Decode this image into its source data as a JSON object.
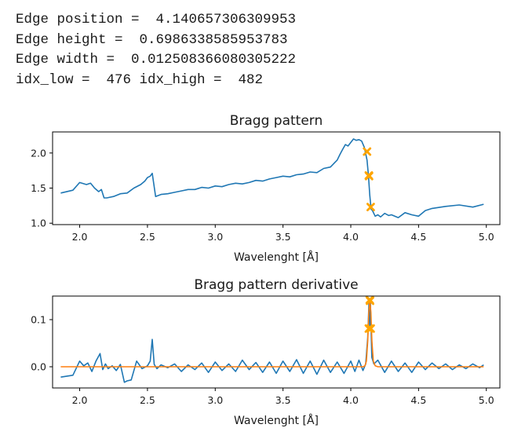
{
  "output": {
    "lines": [
      "Edge position =  4.140657306309953",
      "Edge height =  0.6986338585953783",
      "Edge width =  0.012508366080305222",
      "idx_low =  476 idx_high =  482"
    ]
  },
  "colors": {
    "series": "#1f77b4",
    "fit": "#ff7f0e",
    "markers": "#ffa500",
    "axes": "#000000"
  },
  "chart_data": [
    {
      "type": "line",
      "title": "Bragg pattern",
      "xlabel": "Wavelenght [Å]",
      "ylabel": "",
      "xlim": [
        1.8,
        5.1
      ],
      "ylim": [
        0.98,
        2.3
      ],
      "xticks": [
        2.0,
        2.5,
        3.0,
        3.5,
        4.0,
        4.5,
        5.0
      ],
      "xtick_labels": [
        "2.0",
        "2.5",
        "3.0",
        "3.5",
        "4.0",
        "4.5",
        "5.0"
      ],
      "yticks": [
        1.0,
        1.5,
        2.0
      ],
      "ytick_labels": [
        "1.0",
        "1.5",
        "2.0"
      ],
      "grid": false,
      "series": [
        {
          "kind": "line",
          "x": [
            1.86,
            1.95,
            2.0,
            2.05,
            2.08,
            2.11,
            2.14,
            2.16,
            2.18,
            2.2,
            2.25,
            2.3,
            2.35,
            2.4,
            2.45,
            2.48,
            2.5,
            2.52,
            2.535,
            2.56,
            2.6,
            2.65,
            2.7,
            2.75,
            2.8,
            2.85,
            2.9,
            2.95,
            3.0,
            3.05,
            3.1,
            3.15,
            3.2,
            3.25,
            3.3,
            3.35,
            3.4,
            3.45,
            3.5,
            3.55,
            3.6,
            3.65,
            3.7,
            3.75,
            3.8,
            3.85,
            3.88,
            3.9,
            3.92,
            3.94,
            3.96,
            3.98,
            4.0,
            4.02,
            4.04,
            4.06,
            4.08,
            4.1,
            4.12,
            4.13,
            4.14,
            4.15,
            4.16,
            4.18,
            4.2,
            4.22,
            4.25,
            4.28,
            4.3,
            4.35,
            4.4,
            4.45,
            4.5,
            4.55,
            4.6,
            4.7,
            4.8,
            4.9,
            4.98
          ],
          "y": [
            1.43,
            1.47,
            1.58,
            1.55,
            1.57,
            1.5,
            1.45,
            1.48,
            1.36,
            1.36,
            1.38,
            1.42,
            1.43,
            1.5,
            1.55,
            1.6,
            1.65,
            1.67,
            1.71,
            1.38,
            1.41,
            1.42,
            1.44,
            1.46,
            1.48,
            1.48,
            1.51,
            1.5,
            1.53,
            1.52,
            1.55,
            1.57,
            1.56,
            1.58,
            1.61,
            1.6,
            1.63,
            1.65,
            1.67,
            1.66,
            1.69,
            1.7,
            1.73,
            1.72,
            1.78,
            1.8,
            1.86,
            1.9,
            1.98,
            2.05,
            2.12,
            2.1,
            2.15,
            2.2,
            2.18,
            2.19,
            2.17,
            2.08,
            1.9,
            1.68,
            1.4,
            1.2,
            1.18,
            1.1,
            1.12,
            1.09,
            1.14,
            1.11,
            1.12,
            1.08,
            1.15,
            1.12,
            1.1,
            1.18,
            1.21,
            1.24,
            1.26,
            1.23,
            1.27
          ]
        },
        {
          "kind": "markers",
          "x": [
            4.12,
            4.133,
            4.135,
            4.147
          ],
          "y": [
            2.02,
            1.68,
            1.67,
            1.23
          ]
        }
      ]
    },
    {
      "type": "line",
      "title": "Bragg pattern derivative",
      "xlabel": "Wavelenght [Å]",
      "ylabel": "",
      "xlim": [
        1.8,
        5.1
      ],
      "ylim": [
        -0.045,
        0.15
      ],
      "xticks": [
        2.0,
        2.5,
        3.0,
        3.5,
        4.0,
        4.5,
        5.0
      ],
      "xtick_labels": [
        "2.0",
        "2.5",
        "3.0",
        "3.5",
        "4.0",
        "4.5",
        "5.0"
      ],
      "yticks": [
        0.0,
        0.1
      ],
      "ytick_labels": [
        "0.0",
        "0.1"
      ],
      "grid": false,
      "series": [
        {
          "kind": "line",
          "x": [
            1.86,
            1.95,
            2.0,
            2.03,
            2.06,
            2.09,
            2.12,
            2.15,
            2.17,
            2.19,
            2.21,
            2.24,
            2.27,
            2.3,
            2.33,
            2.35,
            2.38,
            2.42,
            2.46,
            2.5,
            2.52,
            2.535,
            2.55,
            2.57,
            2.6,
            2.65,
            2.7,
            2.75,
            2.8,
            2.85,
            2.9,
            2.95,
            3.0,
            3.05,
            3.1,
            3.15,
            3.2,
            3.25,
            3.3,
            3.35,
            3.4,
            3.45,
            3.5,
            3.55,
            3.6,
            3.65,
            3.7,
            3.75,
            3.8,
            3.85,
            3.9,
            3.95,
            4.0,
            4.03,
            4.06,
            4.09,
            4.11,
            4.125,
            4.135,
            4.14,
            4.145,
            4.155,
            4.17,
            4.2,
            4.25,
            4.3,
            4.35,
            4.4,
            4.45,
            4.5,
            4.55,
            4.6,
            4.65,
            4.7,
            4.75,
            4.8,
            4.85,
            4.9,
            4.95,
            4.98
          ],
          "y": [
            -0.022,
            -0.018,
            0.012,
            0.002,
            0.008,
            -0.01,
            0.012,
            0.028,
            -0.006,
            0.006,
            -0.004,
            0.002,
            -0.008,
            0.005,
            -0.033,
            -0.03,
            -0.028,
            0.012,
            -0.004,
            0.002,
            0.012,
            0.058,
            0.005,
            -0.004,
            0.004,
            -0.002,
            0.006,
            -0.01,
            0.004,
            -0.006,
            0.008,
            -0.012,
            0.01,
            -0.008,
            0.006,
            -0.01,
            0.014,
            -0.006,
            0.009,
            -0.012,
            0.01,
            -0.014,
            0.012,
            -0.01,
            0.015,
            -0.014,
            0.012,
            -0.016,
            0.014,
            -0.012,
            0.01,
            -0.014,
            0.012,
            -0.01,
            0.014,
            -0.008,
            0.006,
            0.062,
            0.142,
            0.08,
            0.138,
            0.02,
            0.006,
            0.014,
            -0.012,
            0.012,
            -0.01,
            0.008,
            -0.012,
            0.01,
            -0.006,
            0.008,
            -0.004,
            0.006,
            -0.006,
            0.004,
            -0.004,
            0.006,
            -0.002,
            0.004
          ]
        },
        {
          "kind": "line",
          "x": [
            1.86,
            4.09,
            4.105,
            4.115,
            4.125,
            4.133,
            4.1407,
            4.148,
            4.156,
            4.166,
            4.18,
            4.2,
            4.98
          ],
          "y": [
            0.0,
            0.0,
            0.002,
            0.012,
            0.055,
            0.115,
            0.1405,
            0.115,
            0.055,
            0.012,
            0.002,
            0.0,
            0.0
          ]
        },
        {
          "kind": "markers",
          "x": [
            4.133,
            4.147,
            4.14,
            4.142
          ],
          "y": [
            0.081,
            0.081,
            0.142,
            0.14
          ]
        }
      ]
    }
  ]
}
